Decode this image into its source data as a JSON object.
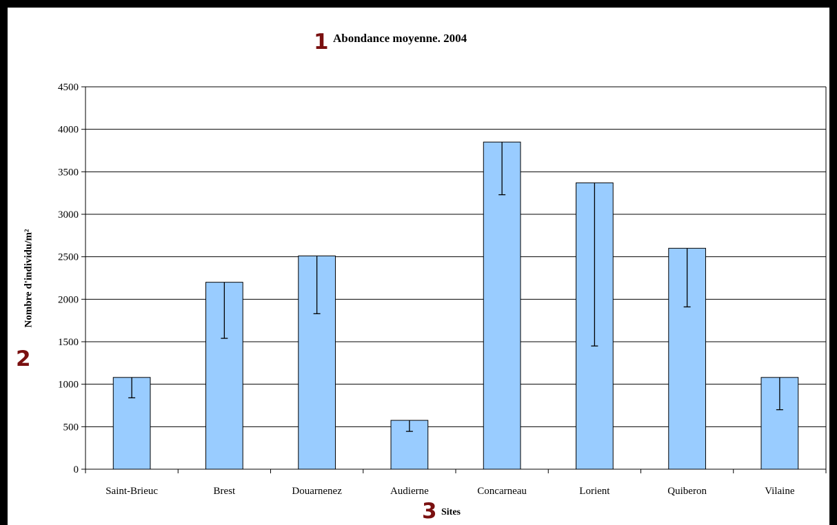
{
  "markers": [
    "1",
    "2",
    "3"
  ],
  "colors": {
    "bar_fill": "#99ccff",
    "bar_stroke": "#000000",
    "grid": "#000000",
    "marker": "#7a1010",
    "frame": "#000000"
  },
  "chart_data": {
    "type": "bar",
    "title": "Abondance moyenne. 2004",
    "xlabel": "Sites",
    "ylabel": "Nombre d'individu/m²",
    "ylim": [
      0,
      4500
    ],
    "yticks": [
      "0",
      "500",
      "1000",
      "1500",
      "2000",
      "2500",
      "3000",
      "3500",
      "4000",
      "4500"
    ],
    "grid": true,
    "categories": [
      "Saint-Brieuc",
      "Brest",
      "Douarnenez",
      "Audierne",
      "Concarneau",
      "Lorient",
      "Quiberon",
      "Vilaine"
    ],
    "values": [
      1080,
      2200,
      2510,
      575,
      3850,
      3370,
      2600,
      1080
    ],
    "error_low": [
      840,
      1540,
      1830,
      445,
      3230,
      1450,
      1910,
      700
    ]
  }
}
